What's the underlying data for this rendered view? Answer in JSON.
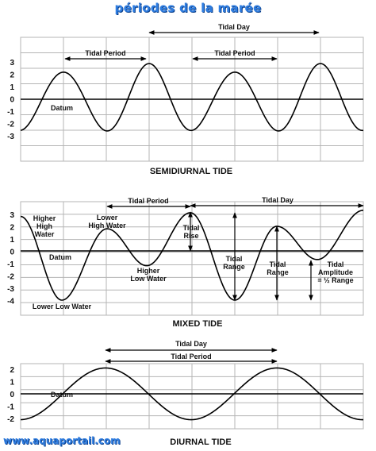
{
  "page": {
    "title": "périodes de la marée",
    "footer": "www.aquaportail.com"
  },
  "colors": {
    "title": "#2f7de0",
    "grid": "#b5b5b5",
    "curve": "#000000"
  },
  "panels": [
    {
      "id": "semidiurnal",
      "title": "SEMIDIURNAL TIDE",
      "y_ticks": [
        "3",
        "2",
        "1",
        "0",
        "-1",
        "-2",
        "-3"
      ],
      "labels": {
        "datum": "Datum",
        "tidal_period_1": "Tidal Period",
        "tidal_period_2": "Tidal Period",
        "tidal_day": "Tidal Day"
      }
    },
    {
      "id": "mixed",
      "title": "MIXED TIDE",
      "y_ticks": [
        "3",
        "2",
        "1",
        "0",
        "-1",
        "-2",
        "-3",
        "-4"
      ],
      "labels": {
        "higher_high_water": "Higher\nHigh\nWater",
        "lower_high_water": "Lower\nHigh Water",
        "datum": "Datum",
        "higher_low_water": "Higher\nLow Water",
        "lower_low_water": "Lower Low Water",
        "tidal_period": "Tidal Period",
        "tidal_day": "Tidal Day",
        "tidal_rise": "Tidal\nRise",
        "tidal_range_1": "Tidal\nRange",
        "tidal_range_2": "Tidal\nRange",
        "tidal_amplitude": "Tidal\nAmplitude\n= ½ Range"
      }
    },
    {
      "id": "diurnal",
      "title": "DIURNAL TIDE",
      "y_ticks": [
        "2",
        "1",
        "0",
        "-1",
        "-2"
      ],
      "labels": {
        "datum": "Datum",
        "tidal_day": "Tidal Day",
        "tidal_period": "Tidal Period"
      }
    }
  ]
}
